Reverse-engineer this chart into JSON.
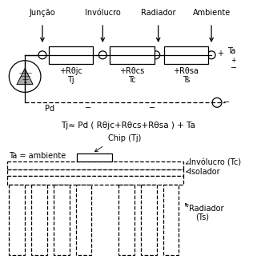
{
  "bg_color": "#ffffff",
  "top_labels": [
    "Junção",
    "Invólucro",
    "Radiador",
    "Ambiente"
  ],
  "res_labels_line1": [
    "+Rθjc",
    "+Rθcs",
    "+Rθsa"
  ],
  "res_labels_line2": [
    "Tj",
    "Tc",
    "Ts"
  ],
  "formula": "Tj≈ Pd ( Rθjc+Rθcs+Rθsa ) + Ta",
  "label_Ta": "Ta = ambiente",
  "label_Chip": "Chip (Tj)",
  "label_Inv": "Invólucro (Tc)",
  "label_Iso": "Isolador",
  "label_Rad": "Radiador",
  "label_Ts": "(Ts)"
}
